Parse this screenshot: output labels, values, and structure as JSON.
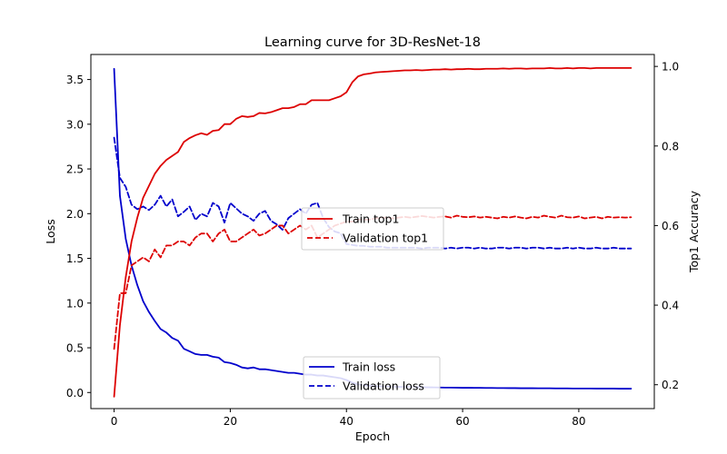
{
  "chart_data": {
    "type": "line",
    "title": "Learning curve for 3D-ResNet-18",
    "xlabel": "Epoch",
    "ylabel_left": "Loss",
    "ylabel_right": "Top1 Accuracy",
    "xlim": [
      -4,
      93
    ],
    "ylim_left": [
      -0.18,
      3.78
    ],
    "ylim_right": [
      0.14,
      1.03
    ],
    "x_ticks": [
      0,
      20,
      40,
      60,
      80
    ],
    "y_ticks_left": [
      "0.0",
      "0.5",
      "1.0",
      "1.5",
      "2.0",
      "2.5",
      "3.0",
      "3.5"
    ],
    "y_ticks_right": [
      "0.2",
      "0.4",
      "0.6",
      "0.8",
      "1.0"
    ],
    "grid": false,
    "legend_accuracy": {
      "placement": "center",
      "entries": [
        "Train top1",
        "Validation top1"
      ]
    },
    "legend_loss": {
      "placement": "lower-center",
      "entries": [
        "Train loss",
        "Validation loss"
      ]
    },
    "x": [
      0,
      1,
      2,
      3,
      4,
      5,
      6,
      7,
      8,
      9,
      10,
      11,
      12,
      13,
      14,
      15,
      16,
      17,
      18,
      19,
      20,
      21,
      22,
      23,
      24,
      25,
      26,
      27,
      28,
      29,
      30,
      31,
      32,
      33,
      34,
      35,
      36,
      37,
      38,
      39,
      40,
      41,
      42,
      43,
      44,
      45,
      46,
      47,
      48,
      49,
      50,
      51,
      52,
      53,
      54,
      55,
      56,
      57,
      58,
      59,
      60,
      61,
      62,
      63,
      64,
      65,
      66,
      67,
      68,
      69,
      70,
      71,
      72,
      73,
      74,
      75,
      76,
      77,
      78,
      79,
      80,
      81,
      82,
      83,
      84,
      85,
      86,
      87,
      88,
      89
    ],
    "series": [
      {
        "name": "Train loss",
        "axis": "left",
        "color": "#0000cc",
        "style": "solid",
        "values": [
          3.62,
          2.2,
          1.72,
          1.42,
          1.2,
          1.02,
          0.9,
          0.8,
          0.71,
          0.67,
          0.61,
          0.58,
          0.49,
          0.46,
          0.43,
          0.42,
          0.42,
          0.4,
          0.39,
          0.34,
          0.33,
          0.31,
          0.28,
          0.27,
          0.28,
          0.26,
          0.26,
          0.25,
          0.24,
          0.23,
          0.22,
          0.22,
          0.21,
          0.2,
          0.2,
          0.19,
          0.19,
          0.18,
          0.17,
          0.16,
          0.14,
          0.11,
          0.09,
          0.08,
          0.075,
          0.07,
          0.068,
          0.066,
          0.064,
          0.063,
          0.062,
          0.061,
          0.06,
          0.059,
          0.058,
          0.057,
          0.056,
          0.055,
          0.055,
          0.054,
          0.053,
          0.053,
          0.052,
          0.052,
          0.051,
          0.051,
          0.05,
          0.05,
          0.049,
          0.049,
          0.048,
          0.048,
          0.048,
          0.047,
          0.047,
          0.047,
          0.046,
          0.046,
          0.046,
          0.045,
          0.045,
          0.045,
          0.045,
          0.044,
          0.044,
          0.044,
          0.044,
          0.043,
          0.043,
          0.043
        ]
      },
      {
        "name": "Validation loss",
        "axis": "left",
        "color": "#0000cc",
        "style": "dashed",
        "values": [
          2.85,
          2.4,
          2.3,
          2.1,
          2.05,
          2.08,
          2.04,
          2.1,
          2.2,
          2.08,
          2.16,
          1.97,
          2.02,
          2.08,
          1.93,
          2.0,
          1.97,
          2.12,
          2.08,
          1.9,
          2.12,
          2.06,
          2.0,
          1.97,
          1.92,
          2.0,
          2.03,
          1.92,
          1.88,
          1.82,
          1.95,
          2.0,
          2.05,
          2.0,
          2.1,
          2.12,
          1.95,
          1.85,
          1.8,
          1.78,
          1.66,
          1.65,
          1.64,
          1.64,
          1.63,
          1.63,
          1.63,
          1.62,
          1.62,
          1.62,
          1.62,
          1.62,
          1.62,
          1.61,
          1.62,
          1.62,
          1.62,
          1.61,
          1.62,
          1.61,
          1.62,
          1.62,
          1.61,
          1.62,
          1.61,
          1.61,
          1.62,
          1.62,
          1.61,
          1.62,
          1.62,
          1.61,
          1.62,
          1.62,
          1.61,
          1.62,
          1.61,
          1.61,
          1.62,
          1.61,
          1.62,
          1.61,
          1.61,
          1.62,
          1.61,
          1.61,
          1.62,
          1.61,
          1.61,
          1.61
        ]
      },
      {
        "name": "Train top1",
        "axis": "right",
        "color": "#dd0000",
        "style": "solid",
        "values": [
          0.17,
          0.35,
          0.47,
          0.56,
          0.62,
          0.67,
          0.7,
          0.73,
          0.75,
          0.765,
          0.775,
          0.785,
          0.81,
          0.82,
          0.827,
          0.832,
          0.828,
          0.838,
          0.84,
          0.855,
          0.855,
          0.868,
          0.875,
          0.873,
          0.875,
          0.883,
          0.882,
          0.885,
          0.89,
          0.895,
          0.895,
          0.898,
          0.905,
          0.905,
          0.915,
          0.915,
          0.915,
          0.915,
          0.92,
          0.925,
          0.935,
          0.96,
          0.975,
          0.98,
          0.982,
          0.985,
          0.986,
          0.987,
          0.988,
          0.989,
          0.99,
          0.99,
          0.991,
          0.99,
          0.991,
          0.992,
          0.992,
          0.993,
          0.992,
          0.993,
          0.993,
          0.994,
          0.993,
          0.993,
          0.994,
          0.994,
          0.994,
          0.995,
          0.994,
          0.995,
          0.995,
          0.994,
          0.995,
          0.995,
          0.995,
          0.996,
          0.995,
          0.995,
          0.996,
          0.995,
          0.996,
          0.996,
          0.995,
          0.996,
          0.996,
          0.996,
          0.996,
          0.996,
          0.996,
          0.996
        ]
      },
      {
        "name": "Validation top1",
        "axis": "right",
        "color": "#dd0000",
        "style": "dashed",
        "values": [
          0.29,
          0.43,
          0.43,
          0.5,
          0.51,
          0.52,
          0.51,
          0.54,
          0.52,
          0.55,
          0.55,
          0.56,
          0.56,
          0.55,
          0.57,
          0.58,
          0.58,
          0.56,
          0.58,
          0.59,
          0.56,
          0.56,
          0.57,
          0.58,
          0.59,
          0.575,
          0.58,
          0.59,
          0.6,
          0.6,
          0.58,
          0.59,
          0.6,
          0.59,
          0.6,
          0.57,
          0.58,
          0.59,
          0.6,
          0.605,
          0.61,
          0.61,
          0.615,
          0.615,
          0.615,
          0.618,
          0.62,
          0.62,
          0.618,
          0.62,
          0.622,
          0.62,
          0.622,
          0.624,
          0.622,
          0.62,
          0.622,
          0.623,
          0.62,
          0.625,
          0.622,
          0.621,
          0.623,
          0.62,
          0.622,
          0.62,
          0.618,
          0.622,
          0.62,
          0.623,
          0.62,
          0.618,
          0.622,
          0.62,
          0.625,
          0.622,
          0.62,
          0.625,
          0.621,
          0.62,
          0.623,
          0.618,
          0.62,
          0.622,
          0.618,
          0.622,
          0.62,
          0.621,
          0.62,
          0.621
        ]
      }
    ]
  }
}
